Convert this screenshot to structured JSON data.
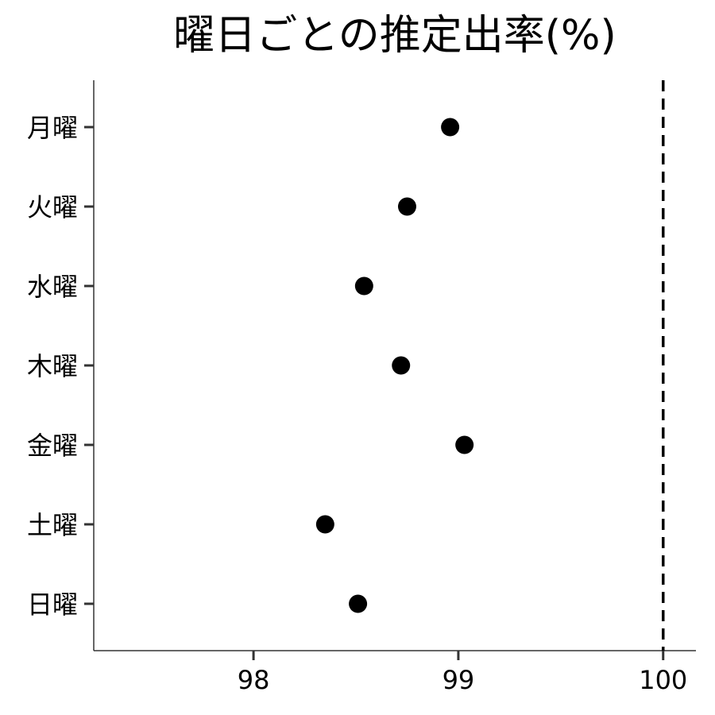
{
  "chart_data": {
    "type": "scatter",
    "title": "曜日ごとの推定出率(%)",
    "xlabel": "",
    "ylabel": "",
    "categories": [
      "月曜",
      "火曜",
      "水曜",
      "木曜",
      "金曜",
      "土曜",
      "日曜"
    ],
    "values": [
      98.96,
      98.75,
      98.54,
      98.72,
      99.03,
      98.35,
      98.51
    ],
    "xlim": [
      97.22,
      100.16
    ],
    "xticks": [
      98,
      99,
      100
    ],
    "xtick_labels": [
      "98",
      "99",
      "100"
    ],
    "reference_line": {
      "x": 100,
      "style": "dashed"
    },
    "grid": false,
    "legend": "none",
    "colors": {
      "point": "#000000",
      "axis": "#333333",
      "reference": "#000000"
    }
  }
}
